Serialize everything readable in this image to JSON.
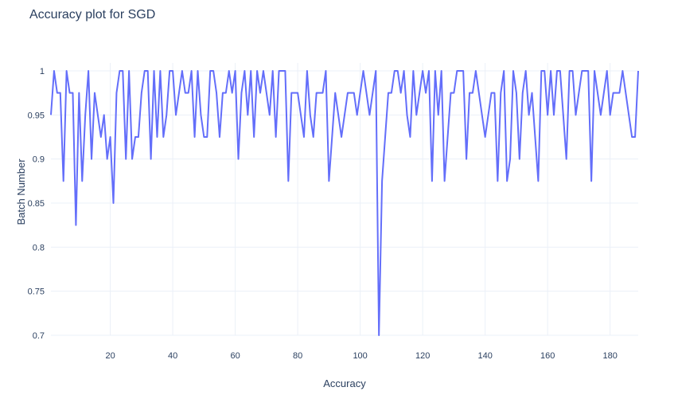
{
  "chart_data": {
    "type": "line",
    "title": "Accuracy plot for SGD",
    "xlabel": "Accuracy",
    "ylabel": "Batch Number",
    "xlim": [
      1,
      189
    ],
    "ylim": [
      0.7,
      1.0
    ],
    "x_ticks": [
      20,
      40,
      60,
      80,
      100,
      120,
      140,
      160,
      180
    ],
    "y_ticks": [
      0.7,
      0.75,
      0.8,
      0.85,
      0.9,
      0.95,
      1
    ],
    "x_tick_labels": [
      "20",
      "40",
      "60",
      "80",
      "100",
      "120",
      "140",
      "160",
      "180"
    ],
    "y_tick_labels": [
      "0.7",
      "0.75",
      "0.8",
      "0.85",
      "0.9",
      "0.95",
      "1"
    ],
    "grid": true,
    "legend": "none",
    "line_color": "#636efa",
    "series": [
      {
        "x": [
          1,
          2,
          3,
          4,
          5,
          6,
          7,
          8,
          9,
          10,
          11,
          12,
          13,
          14,
          15,
          16,
          17,
          18,
          19,
          20,
          21,
          22,
          23,
          24,
          25,
          26,
          27,
          28,
          29,
          30,
          31,
          32,
          33,
          34,
          35,
          36,
          37,
          38,
          39,
          40,
          41,
          42,
          43,
          44,
          45,
          46,
          47,
          48,
          49,
          50,
          51,
          52,
          53,
          54,
          55,
          56,
          57,
          58,
          59,
          60,
          61,
          62,
          63,
          64,
          65,
          66,
          67,
          68,
          69,
          70,
          71,
          72,
          73,
          74,
          75,
          76,
          77,
          78,
          79,
          80,
          81,
          82,
          83,
          84,
          85,
          86,
          87,
          88,
          89,
          90,
          91,
          92,
          93,
          94,
          95,
          96,
          97,
          98,
          99,
          100,
          101,
          102,
          103,
          104,
          105,
          106,
          107,
          108,
          109,
          110,
          111,
          112,
          113,
          114,
          115,
          116,
          117,
          118,
          119,
          120,
          121,
          122,
          123,
          124,
          125,
          126,
          127,
          128,
          129,
          130,
          131,
          132,
          133,
          134,
          135,
          136,
          137,
          138,
          139,
          140,
          141,
          142,
          143,
          144,
          145,
          146,
          147,
          148,
          149,
          150,
          151,
          152,
          153,
          154,
          155,
          156,
          157,
          158,
          159,
          160,
          161,
          162,
          163,
          164,
          165,
          166,
          167,
          168,
          169,
          170,
          171,
          172,
          173,
          174,
          175,
          176,
          177,
          178,
          179,
          180,
          181,
          182,
          183,
          184,
          185,
          186,
          187,
          188,
          189
        ],
        "values": [
          0.95,
          1.0,
          0.975,
          0.975,
          0.875,
          1.0,
          0.975,
          0.975,
          0.825,
          0.975,
          0.875,
          0.95,
          1.0,
          0.9,
          0.975,
          0.95,
          0.925,
          0.95,
          0.9,
          0.925,
          0.85,
          0.975,
          1.0,
          1.0,
          0.9,
          1.0,
          0.9,
          0.925,
          0.925,
          0.975,
          1.0,
          1.0,
          0.9,
          1.0,
          0.925,
          1.0,
          0.925,
          0.95,
          1.0,
          1.0,
          0.95,
          0.975,
          1.0,
          0.975,
          0.975,
          1.0,
          0.925,
          1.0,
          0.95,
          0.925,
          0.925,
          1.0,
          1.0,
          0.975,
          0.925,
          0.975,
          0.975,
          1.0,
          0.975,
          1.0,
          0.9,
          0.975,
          1.0,
          0.95,
          1.0,
          0.925,
          1.0,
          0.975,
          1.0,
          0.975,
          0.95,
          1.0,
          0.925,
          1.0,
          1.0,
          1.0,
          0.875,
          0.975,
          0.975,
          0.975,
          0.95,
          0.925,
          1.0,
          0.95,
          0.925,
          0.975,
          0.975,
          0.975,
          1.0,
          0.875,
          0.925,
          0.975,
          0.95,
          0.925,
          0.95,
          0.975,
          0.975,
          0.975,
          0.95,
          0.975,
          1.0,
          0.975,
          0.95,
          0.975,
          1.0,
          0.7,
          0.875,
          0.925,
          0.975,
          0.975,
          1.0,
          1.0,
          0.975,
          1.0,
          0.95,
          0.925,
          1.0,
          0.95,
          0.975,
          1.0,
          0.975,
          1.0,
          0.875,
          1.0,
          0.95,
          1.0,
          0.875,
          0.925,
          0.975,
          0.975,
          1.0,
          1.0,
          1.0,
          0.9,
          0.975,
          0.975,
          1.0,
          0.975,
          0.95,
          0.925,
          0.95,
          0.975,
          0.975,
          0.875,
          0.975,
          1.0,
          0.875,
          0.9,
          1.0,
          0.975,
          0.9,
          0.975,
          1.0,
          0.95,
          0.975,
          0.925,
          0.875,
          1.0,
          1.0,
          0.95,
          1.0,
          0.95,
          1.0,
          1.0,
          0.95,
          0.9,
          1.0,
          1.0,
          0.95,
          0.975,
          1.0,
          1.0,
          1.0,
          0.875,
          1.0,
          0.975,
          0.95,
          0.975,
          1.0,
          0.95,
          0.975,
          0.975,
          0.975,
          1.0,
          0.975,
          0.95,
          0.925,
          0.925,
          1.0
        ]
      }
    ]
  }
}
